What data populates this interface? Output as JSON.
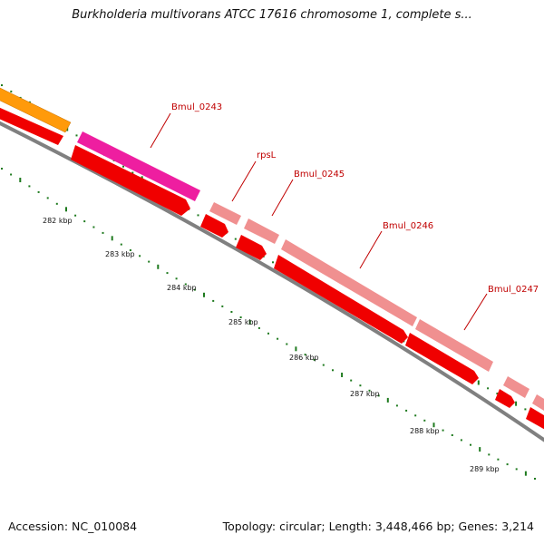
{
  "title": "Burkholderia multivorans ATCC 17616 chromosome 1, complete s...",
  "footer": {
    "accession": "Accession: NC_010084",
    "topology": "Topology: circular; Length: 3,448,466 bp; Genes: 3,214"
  },
  "colors": {
    "backbone": "#808080",
    "cds_red": "#f00000",
    "rRNA_pink": "#ee1ea0",
    "light_red": "#f09090",
    "orange": "#ff9a0a",
    "tick": "#1e7a1e",
    "label": "#c00000"
  },
  "ticks": [
    "282 kbp",
    "283 kbp",
    "284 kbp",
    "285 kbp",
    "286 kbp",
    "287 kbp",
    "288 kbp",
    "289 kbp"
  ],
  "genes": [
    {
      "label": "Bmul_0243",
      "color": "pink"
    },
    {
      "label": "rpsL",
      "color": "light"
    },
    {
      "label": "Bmul_0245",
      "color": "light"
    },
    {
      "label": "Bmul_0246",
      "color": "light"
    },
    {
      "label": "Bmul_0247",
      "color": "light"
    }
  ]
}
